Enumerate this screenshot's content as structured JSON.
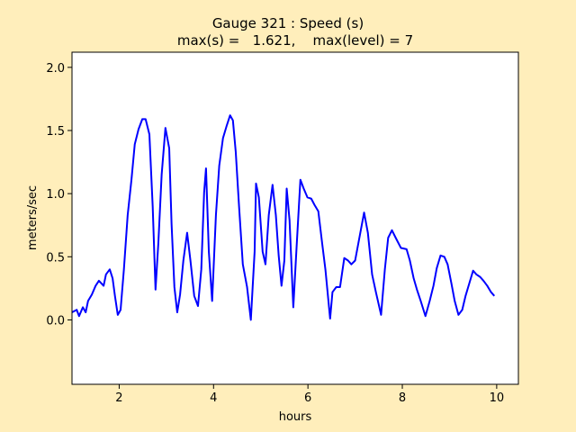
{
  "chart_data": {
    "type": "line",
    "title": "Gauge 321 : Speed (s)",
    "subtitle": "max(s) =   1.621,    max(level) = 7",
    "x_label": "hours",
    "y_label": "meters/sec",
    "xlim": [
      1.0,
      10.46
    ],
    "ylim": [
      -0.51,
      2.12
    ],
    "xticks": [
      2,
      4,
      6,
      8,
      10
    ],
    "yticks": [
      {
        "value": 0,
        "label": "0.0"
      },
      {
        "value": 0.5,
        "label": "0.5"
      },
      {
        "value": 1,
        "label": "1.0"
      },
      {
        "value": 1.5,
        "label": "1.5"
      },
      {
        "value": 2,
        "label": "2.0"
      }
    ],
    "grid": false,
    "x": [
      1.0,
      1.1,
      1.15,
      1.23,
      1.29,
      1.34,
      1.42,
      1.5,
      1.57,
      1.67,
      1.72,
      1.8,
      1.86,
      1.91,
      1.97,
      2.03,
      2.1,
      2.18,
      2.26,
      2.33,
      2.41,
      2.49,
      2.56,
      2.64,
      2.71,
      2.77,
      2.83,
      2.9,
      2.98,
      3.06,
      3.11,
      3.17,
      3.23,
      3.29,
      3.36,
      3.44,
      3.51,
      3.59,
      3.67,
      3.74,
      3.8,
      3.84,
      3.9,
      3.97,
      4.05,
      4.12,
      4.2,
      4.28,
      4.35,
      4.41,
      4.47,
      4.54,
      4.62,
      4.71,
      4.79,
      4.87,
      4.9,
      4.96,
      5.04,
      5.1,
      5.17,
      5.25,
      5.32,
      5.38,
      5.44,
      5.5,
      5.55,
      5.61,
      5.69,
      5.76,
      5.84,
      5.91,
      5.99,
      6.07,
      6.14,
      6.22,
      6.3,
      6.37,
      6.47,
      6.52,
      6.6,
      6.68,
      6.77,
      6.85,
      6.92,
      7.0,
      7.1,
      7.19,
      7.27,
      7.36,
      7.44,
      7.55,
      7.63,
      7.7,
      7.78,
      7.86,
      7.97,
      8.09,
      8.16,
      8.24,
      8.31,
      8.39,
      8.49,
      8.58,
      8.66,
      8.73,
      8.81,
      8.89,
      8.96,
      9.04,
      9.11,
      9.19,
      9.27,
      9.34,
      9.42,
      9.5,
      9.57,
      9.65,
      9.72,
      9.8,
      9.88,
      9.95
    ],
    "series": [
      {
        "color": "#0000ff",
        "values": [
          0.06,
          0.08,
          0.03,
          0.1,
          0.06,
          0.15,
          0.2,
          0.27,
          0.31,
          0.27,
          0.36,
          0.4,
          0.33,
          0.19,
          0.04,
          0.08,
          0.4,
          0.83,
          1.11,
          1.39,
          1.51,
          1.59,
          1.59,
          1.47,
          0.9,
          0.24,
          0.61,
          1.15,
          1.52,
          1.36,
          0.76,
          0.26,
          0.06,
          0.2,
          0.47,
          0.69,
          0.47,
          0.19,
          0.11,
          0.4,
          1.01,
          1.2,
          0.54,
          0.15,
          0.83,
          1.22,
          1.44,
          1.54,
          1.62,
          1.58,
          1.33,
          0.9,
          0.44,
          0.26,
          0.0,
          0.54,
          1.08,
          0.97,
          0.54,
          0.44,
          0.83,
          1.07,
          0.83,
          0.51,
          0.27,
          0.47,
          1.04,
          0.79,
          0.1,
          0.58,
          1.11,
          1.04,
          0.97,
          0.96,
          0.91,
          0.86,
          0.61,
          0.4,
          0.01,
          0.22,
          0.26,
          0.26,
          0.49,
          0.47,
          0.44,
          0.47,
          0.67,
          0.85,
          0.69,
          0.36,
          0.22,
          0.04,
          0.4,
          0.65,
          0.71,
          0.65,
          0.57,
          0.56,
          0.47,
          0.33,
          0.24,
          0.15,
          0.03,
          0.15,
          0.27,
          0.41,
          0.51,
          0.5,
          0.44,
          0.29,
          0.15,
          0.04,
          0.08,
          0.19,
          0.29,
          0.39,
          0.36,
          0.34,
          0.31,
          0.27,
          0.22,
          0.19
        ]
      }
    ]
  }
}
